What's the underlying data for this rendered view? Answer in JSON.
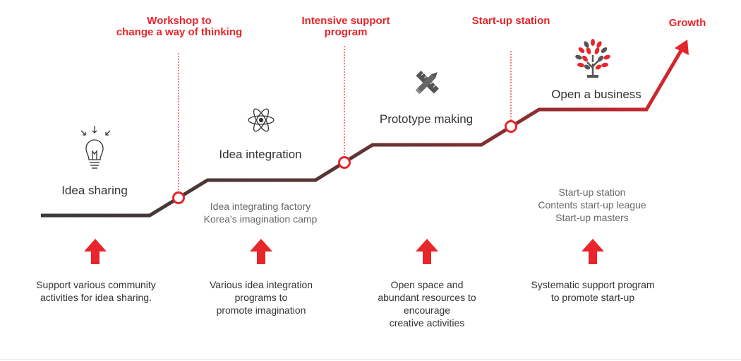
{
  "milestones": [
    {
      "lines": [
        "Workshop to",
        "change a way of thinking"
      ]
    },
    {
      "lines": [
        "Intensive support",
        "program"
      ]
    },
    {
      "lines": [
        "Start-up station"
      ]
    }
  ],
  "growth_label": "Growth",
  "stages": [
    {
      "title": "Idea sharing",
      "icon": "lightbulb-icon"
    },
    {
      "title": "Idea integration",
      "icon": "atom-icon"
    },
    {
      "title": "Prototype making",
      "icon": "ruler-pencil-icon"
    },
    {
      "title": "Open a business",
      "icon": "tree-icon"
    }
  ],
  "programs": {
    "idea_integration": [
      "Idea integrating factory",
      "Korea's imagination camp"
    ],
    "open_business": [
      "Start-up station",
      "Contents start-up league",
      "Start-up masters"
    ]
  },
  "descriptions": [
    [
      "Support various community",
      "activities for idea sharing."
    ],
    [
      "Various idea integration",
      "programs to",
      "promote imagination"
    ],
    [
      "Open space and",
      "abundant resources to",
      "encourage",
      "creative activities"
    ],
    [
      "Systematic support program",
      "to promote start-up"
    ]
  ],
  "colors": {
    "accent": "#e8252b",
    "line_dark": "#3a3a3a",
    "line_mid": "#6b3030",
    "line_red": "#c8262b"
  }
}
